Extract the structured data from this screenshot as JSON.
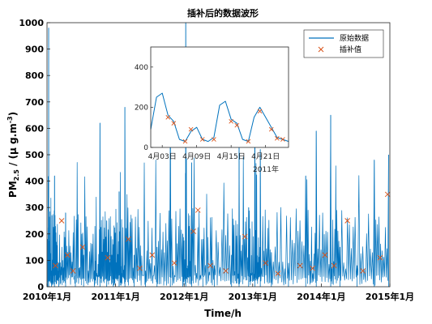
{
  "chart_data": [
    {
      "type": "line",
      "title": "插补后的数据波形",
      "xlabel": "Time/h",
      "ylabel": "PM2.5 / (μ g.m-3)",
      "ylabel_parts": {
        "main": "PM",
        "sub": "2.5",
        "unit_pre": " / (μ g.m",
        "sup": "-3",
        "unit_post": ")"
      },
      "xlim": [
        "2010-01-01",
        "2015-01-01"
      ],
      "ylim": [
        0,
        1000
      ],
      "x_tick_labels": [
        "2010年1月",
        "2011年1月",
        "2012年1月",
        "2013年1月",
        "2014年1月",
        "2015年1月"
      ],
      "y_tick_labels": [
        "0",
        "100",
        "200",
        "300",
        "400",
        "500",
        "600",
        "700",
        "800",
        "900",
        "1000"
      ],
      "legend": {
        "placement": "top-right",
        "entries": [
          "原始数据",
          "插补值"
        ]
      },
      "colors": {
        "original": "#0072BD",
        "imputed": "#D95319"
      },
      "series": [
        {
          "name": "原始数据",
          "style": "line",
          "approx_points": [
            [
              "2010-01-05",
              180
            ],
            [
              "2010-01-10",
              980
            ],
            [
              "2010-01-25",
              60
            ],
            [
              "2010-02-10",
              420
            ],
            [
              "2010-03-05",
              90
            ],
            [
              "2010-04-10",
              280
            ],
            [
              "2010-06-01",
              40
            ],
            [
              "2010-07-15",
              120
            ],
            [
              "2010-09-10",
              60
            ],
            [
              "2010-10-10",
              620
            ],
            [
              "2010-11-15",
              250
            ],
            [
              "2010-12-20",
              160
            ],
            [
              "2011-01-20",
              360
            ],
            [
              "2011-02-20",
              680
            ],
            [
              "2011-04-10",
              120
            ],
            [
              "2011-06-10",
              60
            ],
            [
              "2011-08-10",
              150
            ],
            [
              "2011-10-20",
              640
            ],
            [
              "2011-12-25",
              200
            ],
            [
              "2012-01-10",
              1000
            ],
            [
              "2012-02-10",
              470
            ],
            [
              "2012-04-10",
              180
            ],
            [
              "2012-06-10",
              80
            ],
            [
              "2012-09-10",
              120
            ],
            [
              "2012-10-20",
              560
            ],
            [
              "2012-12-10",
              300
            ],
            [
              "2013-01-12",
              880
            ],
            [
              "2013-02-10",
              520
            ],
            [
              "2013-04-10",
              130
            ],
            [
              "2013-07-10",
              90
            ],
            [
              "2013-10-10",
              420
            ],
            [
              "2013-12-05",
              590
            ],
            [
              "2014-02-20",
              650
            ],
            [
              "2014-04-10",
              150
            ],
            [
              "2014-07-10",
              80
            ],
            [
              "2014-10-10",
              480
            ],
            [
              "2014-12-25",
              500
            ]
          ]
        },
        {
          "name": "插补值",
          "style": "markers-x",
          "approx_points": [
            [
              "2010-02-15",
              80
            ],
            [
              "2010-03-20",
              250
            ],
            [
              "2010-04-20",
              120
            ],
            [
              "2010-05-20",
              60
            ],
            [
              "2010-07-10",
              150
            ],
            [
              "2010-11-20",
              110
            ],
            [
              "2011-03-10",
              180
            ],
            [
              "2011-05-10",
              70
            ],
            [
              "2011-07-15",
              120
            ],
            [
              "2011-11-10",
              90
            ],
            [
              "2012-02-20",
              210
            ],
            [
              "2012-03-15",
              290
            ],
            [
              "2012-05-20",
              80
            ],
            [
              "2012-08-10",
              60
            ],
            [
              "2012-11-20",
              190
            ],
            [
              "2013-03-10",
              90
            ],
            [
              "2013-05-15",
              50
            ],
            [
              "2013-09-10",
              80
            ],
            [
              "2013-11-15",
              70
            ],
            [
              "2014-01-20",
              120
            ],
            [
              "2014-03-10",
              80
            ],
            [
              "2014-05-20",
              250
            ],
            [
              "2014-08-10",
              60
            ],
            [
              "2014-11-10",
              110
            ],
            [
              "2014-12-20",
              350
            ]
          ]
        }
      ]
    },
    {
      "type": "line",
      "role": "inset",
      "xlabel": "2011年",
      "xlim": [
        "2011-04-01",
        "2011-04-25"
      ],
      "ylim": [
        0,
        500
      ],
      "x_tick_labels": [
        "4月03日",
        "4月09日",
        "4月15日",
        "4月21日"
      ],
      "y_tick_labels": [
        "0",
        "200",
        "400"
      ],
      "series": [
        {
          "name": "原始数据",
          "style": "line",
          "approx_points": [
            [
              "2011-04-01",
              90
            ],
            [
              "2011-04-02",
              250
            ],
            [
              "2011-04-03",
              270
            ],
            [
              "2011-04-04",
              160
            ],
            [
              "2011-04-05",
              130
            ],
            [
              "2011-04-06",
              40
            ],
            [
              "2011-04-07",
              30
            ],
            [
              "2011-04-08",
              80
            ],
            [
              "2011-04-09",
              100
            ],
            [
              "2011-04-10",
              40
            ],
            [
              "2011-04-11",
              30
            ],
            [
              "2011-04-12",
              50
            ],
            [
              "2011-04-13",
              210
            ],
            [
              "2011-04-14",
              230
            ],
            [
              "2011-04-15",
              140
            ],
            [
              "2011-04-16",
              120
            ],
            [
              "2011-04-17",
              40
            ],
            [
              "2011-04-18",
              30
            ],
            [
              "2011-04-19",
              150
            ],
            [
              "2011-04-20",
              200
            ],
            [
              "2011-04-21",
              150
            ],
            [
              "2011-04-22",
              100
            ],
            [
              "2011-04-23",
              50
            ],
            [
              "2011-04-24",
              40
            ],
            [
              "2011-04-25",
              30
            ]
          ]
        },
        {
          "name": "插补值",
          "style": "markers-x",
          "approx_points": [
            [
              "2011-04-04",
              150
            ],
            [
              "2011-04-05",
              120
            ],
            [
              "2011-04-07",
              30
            ],
            [
              "2011-04-08",
              90
            ],
            [
              "2011-04-10",
              40
            ],
            [
              "2011-04-12",
              40
            ],
            [
              "2011-04-15",
              130
            ],
            [
              "2011-04-16",
              110
            ],
            [
              "2011-04-18",
              30
            ],
            [
              "2011-04-20",
              180
            ],
            [
              "2011-04-22",
              90
            ],
            [
              "2011-04-23",
              45
            ],
            [
              "2011-04-24",
              40
            ]
          ]
        }
      ]
    }
  ]
}
